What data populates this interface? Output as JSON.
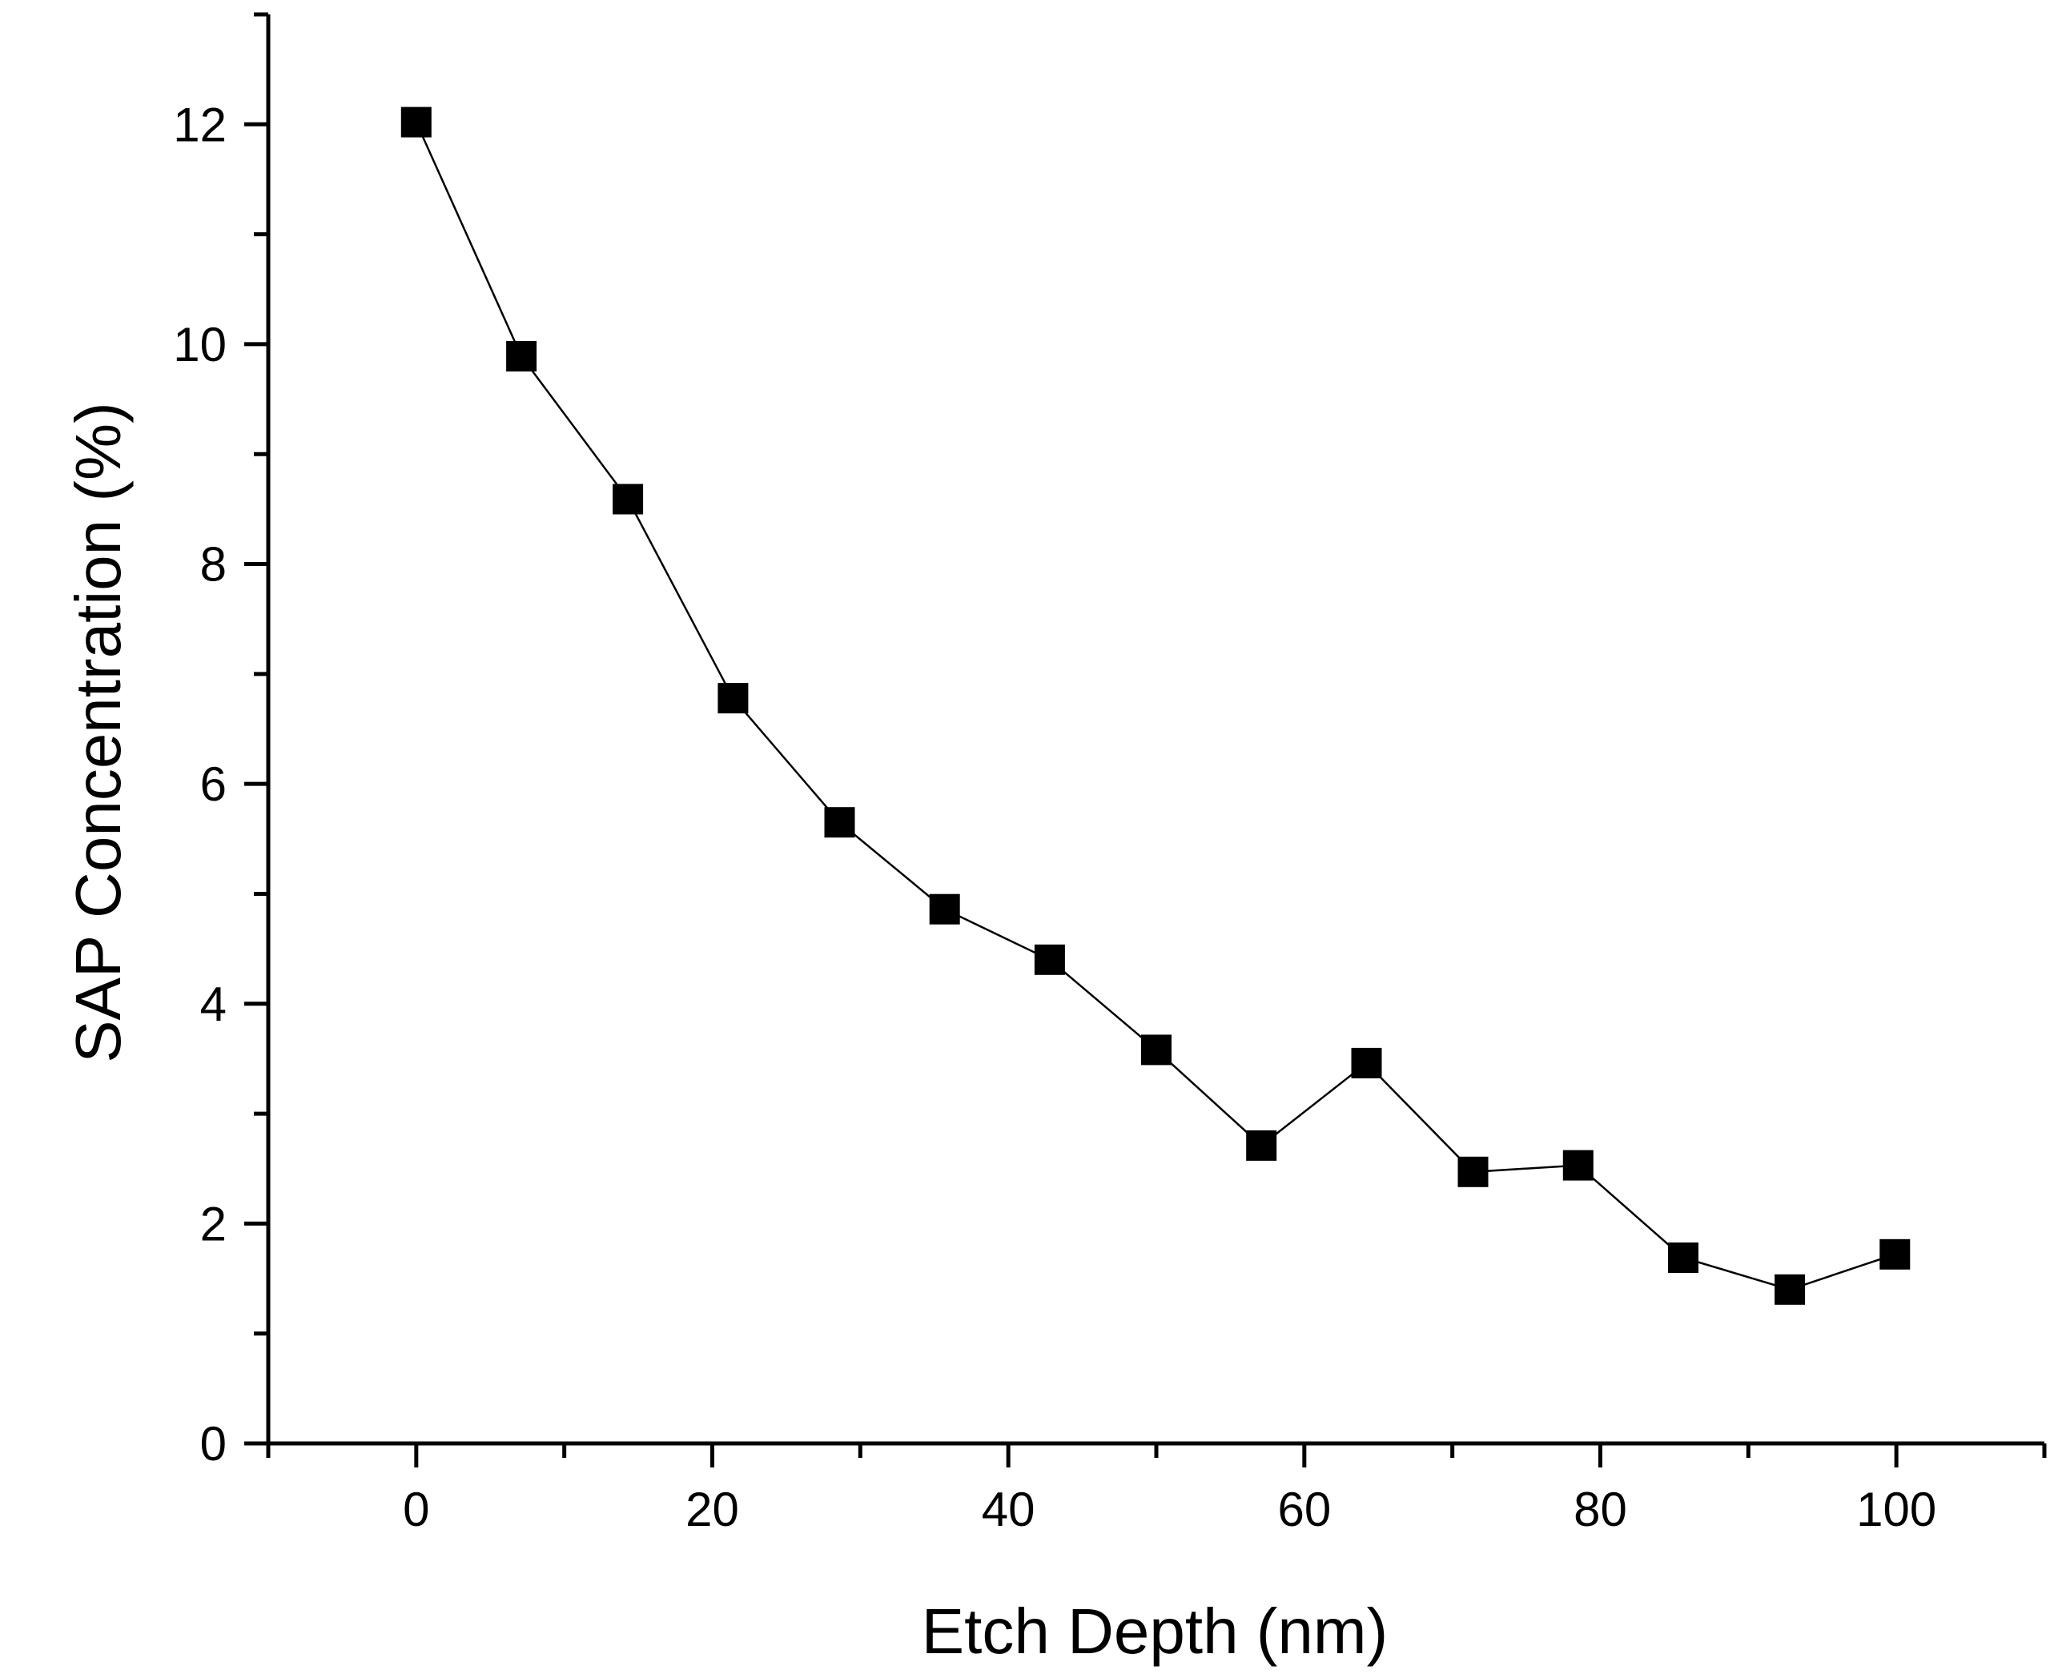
{
  "chart_data": {
    "type": "line",
    "title": "",
    "xlabel": "Etch Depth (nm)",
    "ylabel": "SAP Concentration (%)",
    "xlim": [
      -10,
      110
    ],
    "ylim": [
      0,
      13
    ],
    "x_ticks": [
      "0",
      "20",
      "40",
      "60",
      "80",
      "100"
    ],
    "y_ticks": [
      "0",
      "2",
      "4",
      "6",
      "8",
      "10",
      "12"
    ],
    "grid": false,
    "legend": "none",
    "series": [
      {
        "marker": "square",
        "color": "#000000",
        "x": [
          0,
          7.1,
          14.3,
          21.4,
          28.6,
          35.7,
          42.8,
          50.0,
          57.1,
          64.2,
          71.4,
          78.5,
          85.6,
          92.8,
          99.9
        ],
        "y": [
          12.02,
          9.89,
          8.59,
          6.78,
          5.65,
          4.86,
          4.4,
          3.58,
          2.71,
          3.46,
          2.47,
          2.53,
          1.69,
          1.4,
          1.72
        ]
      }
    ]
  }
}
